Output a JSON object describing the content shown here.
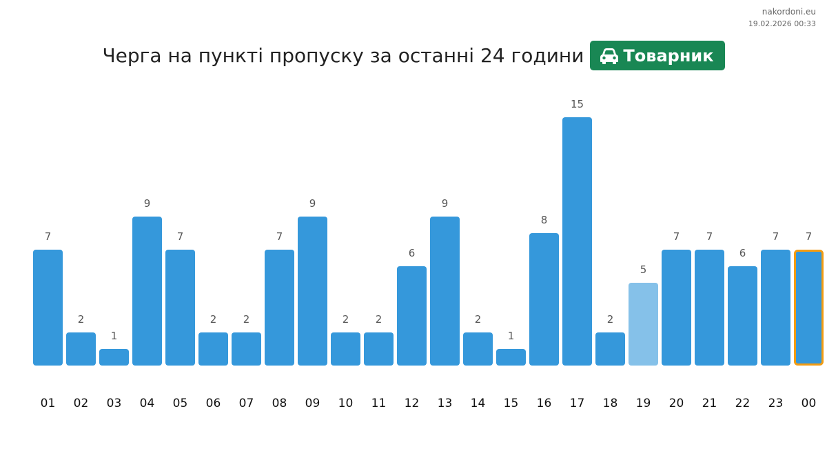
{
  "site": "nakordoni.eu",
  "timestamp": "19.02.2026 00:33",
  "header": {
    "title": "Черга на пункті пропуску за останні 24 години",
    "badge_icon": "car-icon",
    "badge_label": "Товарник",
    "badge_color": "#198754"
  },
  "chart_data": {
    "type": "bar",
    "title": "Черга на пункті пропуску за останні 24 години",
    "xlabel": "",
    "ylabel": "",
    "categories": [
      "01",
      "02",
      "03",
      "04",
      "05",
      "06",
      "07",
      "08",
      "09",
      "10",
      "11",
      "12",
      "13",
      "14",
      "15",
      "16",
      "17",
      "18",
      "19",
      "20",
      "21",
      "22",
      "23",
      "00"
    ],
    "values": [
      7,
      2,
      1,
      9,
      7,
      2,
      2,
      7,
      9,
      2,
      2,
      6,
      9,
      2,
      1,
      8,
      15,
      2,
      5,
      7,
      7,
      6,
      7,
      7
    ],
    "colors": {
      "default": "#3598db",
      "light": "#85c1e9",
      "highlight_border": "#f39c12",
      "label": "#555555",
      "tick": "#111111"
    },
    "light_category": "19",
    "highlight_category": "00",
    "grid": false
  }
}
